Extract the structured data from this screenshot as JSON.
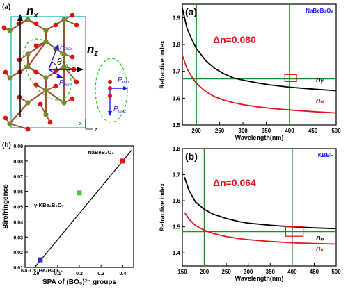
{
  "colors": {
    "black": "#000000",
    "red": "#e8141b",
    "green": "#1f8f1f",
    "cyan_box": "#38c7cf",
    "dashed_ellipse": "#22cc22",
    "blue_text": "#1a1aff",
    "atom_red": "#e01010",
    "atom_olive": "#7a8a30",
    "bond_brown": "#a0522d",
    "marker_red": "#e8141b",
    "marker_green": "#44cc44",
    "marker_blue": "#2b2bcc"
  },
  "panel_structure": {
    "panel_label": "(a)",
    "nx_label": "n",
    "nx_sub": "x",
    "nz_label": "n",
    "nz_sub": "z",
    "pmax_label": "P",
    "pmax_sub": "max",
    "pmin_label": "P",
    "pmin_sub": "min",
    "theta": "θ",
    "axis_x": "x",
    "axis_z": "z"
  },
  "chart_data": [
    {
      "id": "naBeBO",
      "type": "line",
      "panel_label": "(a)",
      "compound_label": "NaBeB₃O₆",
      "delta_n_text": "Δn=0.080",
      "xlabel": "Wavelength(nm)",
      "ylabel": "Refractive index",
      "xlim": [
        170,
        500
      ],
      "ylim": [
        1.5,
        1.95
      ],
      "xticks": [
        200,
        250,
        300,
        350,
        400,
        450,
        500
      ],
      "yticks": [
        1.5,
        1.6,
        1.7,
        1.8,
        1.9
      ],
      "ytick_decimals": 1,
      "series": [
        {
          "name": "nᵧ",
          "color": "#000000",
          "x": [
            170,
            180,
            190,
            200,
            220,
            240,
            260,
            280,
            300,
            330,
            360,
            400,
            450,
            500
          ],
          "y": [
            1.935,
            1.86,
            1.82,
            1.785,
            1.74,
            1.71,
            1.69,
            1.675,
            1.667,
            1.657,
            1.649,
            1.641,
            1.634,
            1.628
          ]
        },
        {
          "name": "nᵩ",
          "color": "#e8141b",
          "x": [
            170,
            180,
            190,
            200,
            220,
            240,
            260,
            280,
            300,
            330,
            360,
            400,
            450,
            500
          ],
          "y": [
            1.76,
            1.71,
            1.68,
            1.655,
            1.625,
            1.605,
            1.592,
            1.583,
            1.576,
            1.568,
            1.562,
            1.556,
            1.55,
            1.545
          ]
        }
      ],
      "green_vlines": [
        200,
        400
      ],
      "green_hline": 1.672,
      "highlight_box": {
        "x": [
          390,
          415
        ],
        "y": [
          1.662,
          1.688
        ]
      }
    },
    {
      "id": "kbbf",
      "type": "line",
      "panel_label": "(b)",
      "compound_label": "KBBF",
      "delta_n_text": "Δn=0.064",
      "xlabel": "Wavelength(nm)",
      "ylabel": "Refractive index",
      "xlim": [
        150,
        500
      ],
      "ylim": [
        1.35,
        1.8
      ],
      "xticks": [
        150,
        200,
        250,
        300,
        350,
        400,
        450,
        500
      ],
      "yticks": [
        1.4,
        1.5,
        1.6,
        1.7,
        1.8
      ],
      "ytick_decimals": 1,
      "series": [
        {
          "name": "nₒ",
          "color": "#000000",
          "x": [
            155,
            165,
            180,
            200,
            220,
            250,
            280,
            300,
            350,
            400,
            450,
            500
          ],
          "y": [
            1.69,
            1.64,
            1.595,
            1.567,
            1.549,
            1.532,
            1.52,
            1.514,
            1.506,
            1.5,
            1.496,
            1.493
          ]
        },
        {
          "name": "nₑ",
          "color": "#e8141b",
          "x": [
            155,
            165,
            180,
            200,
            220,
            250,
            280,
            300,
            350,
            400,
            450,
            500
          ],
          "y": [
            1.555,
            1.53,
            1.505,
            1.487,
            1.475,
            1.463,
            1.455,
            1.451,
            1.444,
            1.439,
            1.436,
            1.434
          ]
        }
      ],
      "green_vlines": [
        200,
        400
      ],
      "green_hline": 1.482,
      "highlight_box": {
        "x": [
          385,
          425
        ],
        "y": [
          1.464,
          1.5
        ]
      }
    },
    {
      "id": "biref",
      "type": "scatter",
      "panel_label": "(b)",
      "xlabel": "SPA of (BO₃)³⁻ groups",
      "ylabel": "Birefringence",
      "xlim": [
        -0.05,
        0.45
      ],
      "ylim": [
        0.01,
        0.09
      ],
      "xticks": [
        0.0,
        0.1,
        0.2,
        0.3,
        0.4
      ],
      "yticks": [
        0.01,
        0.02,
        0.03,
        0.04,
        0.05,
        0.06,
        0.07,
        0.08,
        0.09
      ],
      "xtick_decimals": 1,
      "ytick_decimals": 2,
      "points": [
        {
          "x": 0.4,
          "y": 0.08,
          "color": "#e8141b",
          "label": "NaBeB₃O₆"
        },
        {
          "x": 0.2,
          "y": 0.059,
          "color": "#44cc44",
          "label": "γ-KBe₂B₃O₇"
        },
        {
          "x": 0.02,
          "y": 0.015,
          "color": "#2b2bcc",
          "label": "Na₂Cs₂Be₆B₅O₁₅"
        }
      ],
      "fit_line": {
        "x": [
          0.0,
          0.44
        ],
        "y": [
          0.011,
          0.087
        ]
      }
    }
  ]
}
